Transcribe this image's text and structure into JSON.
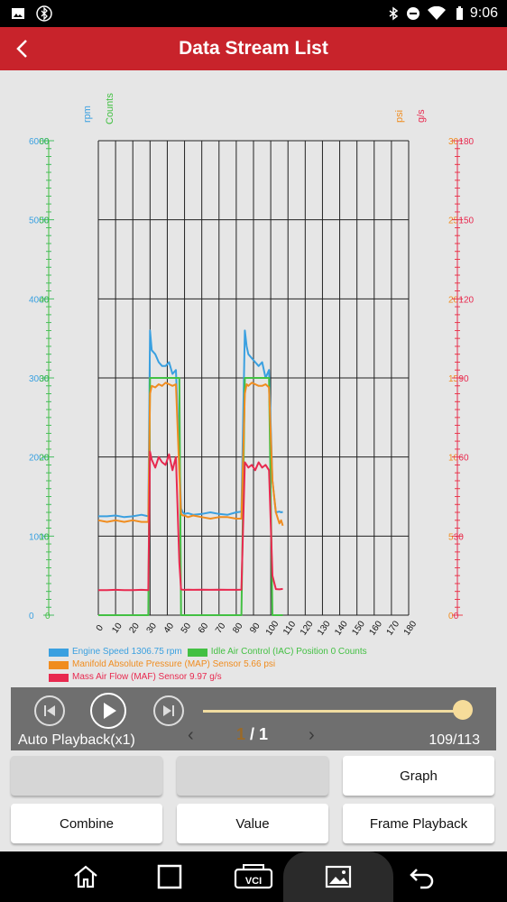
{
  "status": {
    "time": "9:06"
  },
  "header": {
    "title": "Data Stream List"
  },
  "chart_data": {
    "type": "line",
    "x_ticks": [
      "0",
      "10",
      "20",
      "30",
      "40",
      "50",
      "60",
      "70",
      "80",
      "90",
      "100",
      "110",
      "120",
      "130",
      "140",
      "150",
      "160",
      "170",
      "180"
    ],
    "x": [
      0,
      5,
      10,
      15,
      20,
      25,
      29,
      30,
      31,
      33,
      35,
      37,
      39,
      41,
      43,
      45,
      47,
      48,
      49,
      50,
      52,
      55,
      60,
      65,
      70,
      75,
      80,
      83,
      85,
      86,
      87,
      89,
      91,
      93,
      95,
      97,
      99,
      101,
      103,
      105,
      106,
      107
    ],
    "series": [
      {
        "name": "Engine Speed 1306.75 rpm",
        "color": "#3aa0e0",
        "axis": "rpm",
        "values": [
          1250,
          1250,
          1260,
          1240,
          1250,
          1270,
          1250,
          3600,
          3350,
          3300,
          3200,
          3150,
          3150,
          3200,
          3050,
          3100,
          2000,
          1350,
          1300,
          1280,
          1290,
          1270,
          1280,
          1300,
          1280,
          1270,
          1300,
          1310,
          3600,
          3400,
          3300,
          3250,
          3200,
          3150,
          3200,
          3000,
          3100,
          1700,
          1300,
          1310,
          1300,
          1306
        ]
      },
      {
        "name": "Idle Air Control (IAC) Position 0 Counts",
        "color": "#43c043",
        "axis": "Counts",
        "values": [
          0,
          0,
          0,
          0,
          0,
          0,
          0,
          30,
          30,
          30,
          30,
          30,
          30,
          30,
          30,
          30,
          30,
          0,
          0,
          0,
          0,
          0,
          0,
          0,
          0,
          0,
          0,
          0,
          30,
          30,
          30,
          30,
          30,
          30,
          30,
          30,
          30,
          0,
          0,
          0,
          0,
          0
        ]
      },
      {
        "name": "Manifold Absolute Pressure (MAP) Sensor 5.66 psi",
        "color": "#f08c1e",
        "axis": "psi",
        "values": [
          6.0,
          5.9,
          6.0,
          5.9,
          6.0,
          5.9,
          5.9,
          14.0,
          14.5,
          14.4,
          14.6,
          14.5,
          14.7,
          14.6,
          14.5,
          14.6,
          9.0,
          6.4,
          6.3,
          6.3,
          6.2,
          6.3,
          6.2,
          6.1,
          6.2,
          6.2,
          6.1,
          6.1,
          14.0,
          14.6,
          14.5,
          14.7,
          14.6,
          14.5,
          14.5,
          14.6,
          14.4,
          8.5,
          6.5,
          5.8,
          6.0,
          5.66
        ]
      },
      {
        "name": "Mass Air Flow (MAF) Sensor 9.97 g/s",
        "color": "#e8294f",
        "axis": "g/s",
        "values": [
          9.5,
          9.5,
          9.6,
          9.5,
          9.5,
          9.6,
          9.5,
          62,
          59,
          56,
          60,
          58,
          57,
          61,
          55,
          60,
          20,
          9.8,
          9.7,
          9.6,
          9.7,
          9.6,
          9.7,
          9.6,
          9.7,
          9.6,
          9.6,
          9.7,
          58,
          57,
          56,
          57,
          55,
          58,
          56,
          57,
          55,
          15,
          9.9,
          9.8,
          9.9,
          9.97
        ]
      }
    ],
    "y_axes": [
      {
        "label": "rpm",
        "color": "#3aa0e0",
        "side": "left",
        "range": [
          0,
          6000
        ],
        "ticks": [
          "0",
          "1000",
          "2000",
          "3000",
          "4000",
          "5000",
          "6000"
        ]
      },
      {
        "label": "Counts",
        "color": "#43c043",
        "side": "left",
        "range": [
          0,
          60
        ],
        "ticks": [
          "0",
          "10",
          "20",
          "30",
          "40",
          "50",
          "60"
        ]
      },
      {
        "label": "psi",
        "color": "#f08c1e",
        "side": "right",
        "range": [
          0,
          30
        ],
        "ticks": [
          "0",
          "5",
          "10",
          "15",
          "20",
          "25",
          "30"
        ]
      },
      {
        "label": "g/s",
        "color": "#e8294f",
        "side": "right",
        "range": [
          0,
          180
        ],
        "ticks": [
          "0",
          "30",
          "60",
          "90",
          "120",
          "150",
          "180"
        ]
      }
    ],
    "xlim": [
      0,
      180
    ],
    "grid": true,
    "legend": "bottom-left"
  },
  "legend": [
    {
      "label": "Engine Speed 1306.75 rpm",
      "color": "#3aa0e0"
    },
    {
      "label": "Idle Air Control (IAC) Position 0 Counts",
      "color": "#43c043"
    },
    {
      "label": "Manifold Absolute Pressure (MAP) Sensor 5.66 psi",
      "color": "#f08c1e"
    },
    {
      "label": "Mass Air Flow (MAF) Sensor 9.97 g/s",
      "color": "#e8294f"
    }
  ],
  "playback": {
    "label": "Auto Playback(x1)",
    "page_current": "1",
    "page_sep": " / ",
    "page_total": "1",
    "count": "109/113",
    "progress": 0.965
  },
  "buttons": {
    "graph": "Graph",
    "combine": "Combine",
    "value": "Value",
    "frame_playback": "Frame Playback"
  },
  "nav": {
    "vci_label": "VCI"
  }
}
